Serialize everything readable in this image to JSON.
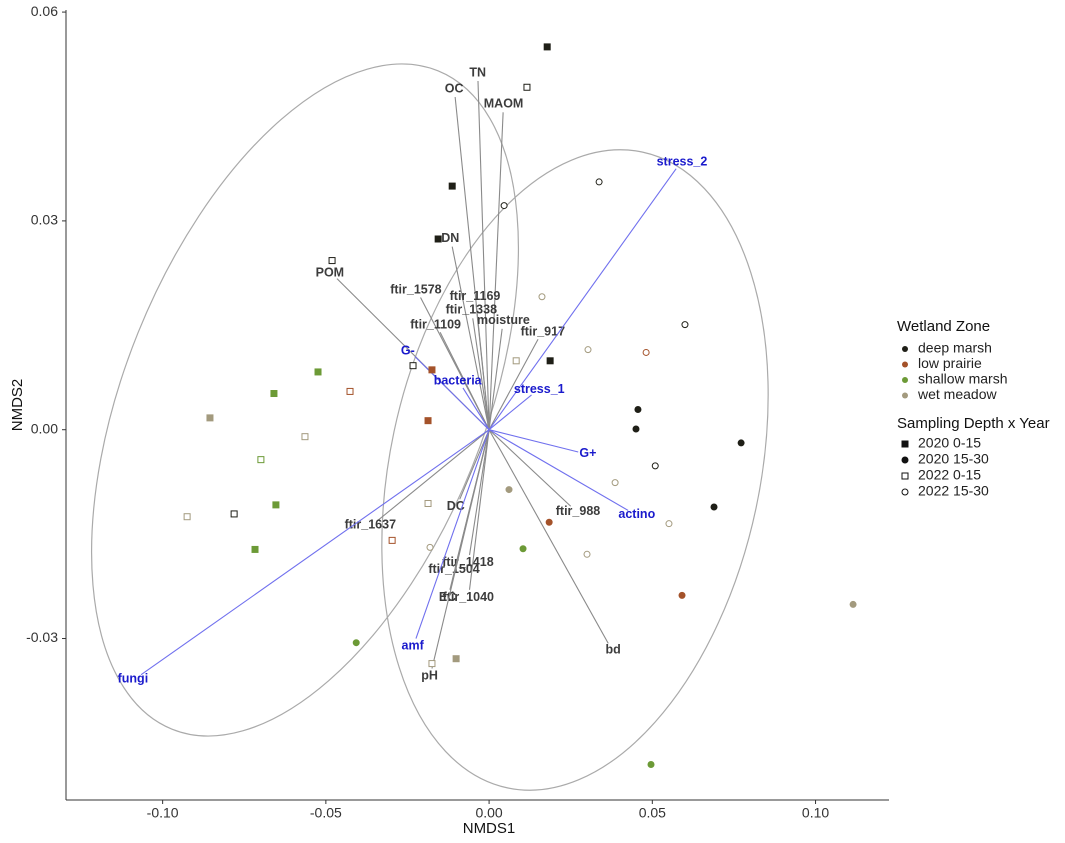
{
  "chart_data": {
    "type": "scatter",
    "xlabel": "NMDS1",
    "ylabel": "NMDS2",
    "xlim": [
      -0.1296,
      0.1225
    ],
    "ylim": [
      -0.0532,
      0.0603
    ],
    "xticks": [
      {
        "value": -0.1,
        "label": "-0.10"
      },
      -0.05,
      {
        "value": 0,
        "label": "0.00"
      },
      0.05,
      {
        "value": 0.1,
        "label": "0.10"
      }
    ],
    "yticks": [
      -0.03,
      {
        "value": 0,
        "label": "0.00"
      },
      0.03,
      0.06
    ],
    "points": {
      "x": [
        0.0178,
        0.0116,
        0.0337,
        0.0046,
        -0.0113,
        -0.0156,
        -0.0481,
        0.0162,
        0.06,
        0.0481,
        0.0303,
        0.0187,
        0.0083,
        -0.0233,
        -0.0175,
        -0.0524,
        -0.0659,
        -0.0426,
        -0.0855,
        -0.0187,
        -0.0564,
        0.0456,
        0.045,
        0.0772,
        0.0509,
        0.0386,
        0.0689,
        -0.0699,
        -0.0653,
        -0.0781,
        -0.0925,
        -0.0187,
        0.0061,
        0.0184,
        0.0551,
        -0.0297,
        -0.0181,
        -0.0717,
        0.0104,
        0.03,
        0.0591,
        0.1115,
        -0.0407,
        -0.0101,
        -0.0175,
        0.0496
      ],
      "y": [
        0.055,
        0.0492,
        0.0356,
        0.0322,
        0.035,
        0.0274,
        0.0243,
        0.0191,
        0.0151,
        0.0111,
        0.0115,
        0.0099,
        0.0099,
        0.0092,
        0.0086,
        0.0083,
        0.0052,
        0.0055,
        0.0017,
        0.0013,
        -0.001,
        0.0029,
        0.0001,
        -0.0019,
        -0.0052,
        -0.0076,
        -0.0111,
        -0.0043,
        -0.0108,
        -0.0121,
        -0.0125,
        -0.0106,
        -0.0086,
        -0.0133,
        -0.0135,
        -0.0159,
        -0.0169,
        -0.0172,
        -0.0171,
        -0.0179,
        -0.0238,
        -0.0251,
        -0.0306,
        -0.0329,
        -0.0336,
        -0.0481
      ],
      "zone": [
        "deep marsh",
        "deep marsh",
        "deep marsh",
        "deep marsh",
        "deep marsh",
        "deep marsh",
        "deep marsh",
        "wet meadow",
        "deep marsh",
        "low prairie",
        "wet meadow",
        "deep marsh",
        "wet meadow",
        "deep marsh",
        "low prairie",
        "shallow marsh",
        "shallow marsh",
        "low prairie",
        "wet meadow",
        "low prairie",
        "wet meadow",
        "deep marsh",
        "deep marsh",
        "deep marsh",
        "deep marsh",
        "wet meadow",
        "deep marsh",
        "shallow marsh",
        "shallow marsh",
        "deep marsh",
        "wet meadow",
        "wet meadow",
        "wet meadow",
        "low prairie",
        "wet meadow",
        "low prairie",
        "wet meadow",
        "shallow marsh",
        "shallow marsh",
        "wet meadow",
        "low prairie",
        "wet meadow",
        "shallow marsh",
        "wet meadow",
        "wet meadow",
        "shallow marsh"
      ],
      "group": [
        "2020 0-15",
        "2022 0-15",
        "2022 15-30",
        "2022 15-30",
        "2020 0-15",
        "2020 0-15",
        "2022 0-15",
        "2022 15-30",
        "2022 15-30",
        "2022 15-30",
        "2022 15-30",
        "2020 0-15",
        "2022 0-15",
        "2022 0-15",
        "2020 0-15",
        "2020 0-15",
        "2020 0-15",
        "2022 0-15",
        "2020 0-15",
        "2020 0-15",
        "2022 0-15",
        "2020 15-30",
        "2020 15-30",
        "2020 15-30",
        "2022 15-30",
        "2022 15-30",
        "2020 15-30",
        "2022 0-15",
        "2020 0-15",
        "2022 0-15",
        "2022 0-15",
        "2022 0-15",
        "2020 15-30",
        "2020 15-30",
        "2022 15-30",
        "2022 0-15",
        "2022 15-30",
        "2020 0-15",
        "2020 15-30",
        "2022 15-30",
        "2020 15-30",
        "2020 15-30",
        "2020 15-30",
        "2020 0-15",
        "2022 0-15",
        "2020 15-30"
      ]
    },
    "vector_sets": [
      {
        "color": "#8a8a8a",
        "label_color": "#3c3c3c",
        "names": [
          "TN",
          "OC",
          "MAOM",
          "DN",
          "POM",
          "ftir_1578",
          "ftir_1169",
          "ftir_1338",
          "ftir_1109",
          "moisture",
          "ftir_917",
          "DC",
          "ftir_988",
          "ftir_1637",
          "ftir_1418",
          "ftir_1504",
          "EC",
          "ftir_1040",
          "bd",
          "pH"
        ],
        "x": [
          -0.0034,
          -0.0104,
          0.0043,
          -0.0113,
          -0.0466,
          -0.021,
          -0.004,
          -0.005,
          -0.015,
          0.004,
          0.015,
          -0.009,
          0.025,
          -0.034,
          -0.006,
          -0.01,
          -0.012,
          -0.006,
          0.0365,
          -0.0175
        ],
        "y": [
          0.0501,
          0.0478,
          0.0456,
          0.0263,
          0.0217,
          0.019,
          0.018,
          0.016,
          0.014,
          0.0145,
          0.013,
          -0.01,
          -0.011,
          -0.013,
          -0.018,
          -0.019,
          -0.023,
          -0.023,
          -0.0307,
          -0.0343
        ]
      },
      {
        "color": "#7070ee",
        "label_color": "#1a1acc",
        "names": [
          "stress_2",
          "G-",
          "bacteria",
          "stress_1",
          "G+",
          "actino",
          "amf",
          "fungi"
        ],
        "x": [
          0.0573,
          -0.0227,
          -0.008,
          0.013,
          0.0273,
          0.0426,
          -0.0224,
          -0.1066
        ],
        "y": [
          0.0375,
          0.0105,
          0.006,
          0.005,
          -0.0032,
          -0.0116,
          -0.03,
          -0.0352
        ]
      }
    ],
    "legends": [
      {
        "title": "Wetland Zone",
        "items": [
          "deep marsh",
          "low prairie",
          "shallow marsh",
          "wet meadow"
        ],
        "colors": [
          "#1f1f17",
          "#a4522a",
          "#6c9a36",
          "#a39a7e"
        ]
      },
      {
        "title": "Sampling Depth x Year",
        "items": [
          "2020 0-15",
          "2020 15-30",
          "2022 0-15",
          "2022 15-30"
        ],
        "shapes": [
          "square-filled",
          "circle-filled",
          "square-open",
          "circle-open"
        ]
      }
    ]
  }
}
